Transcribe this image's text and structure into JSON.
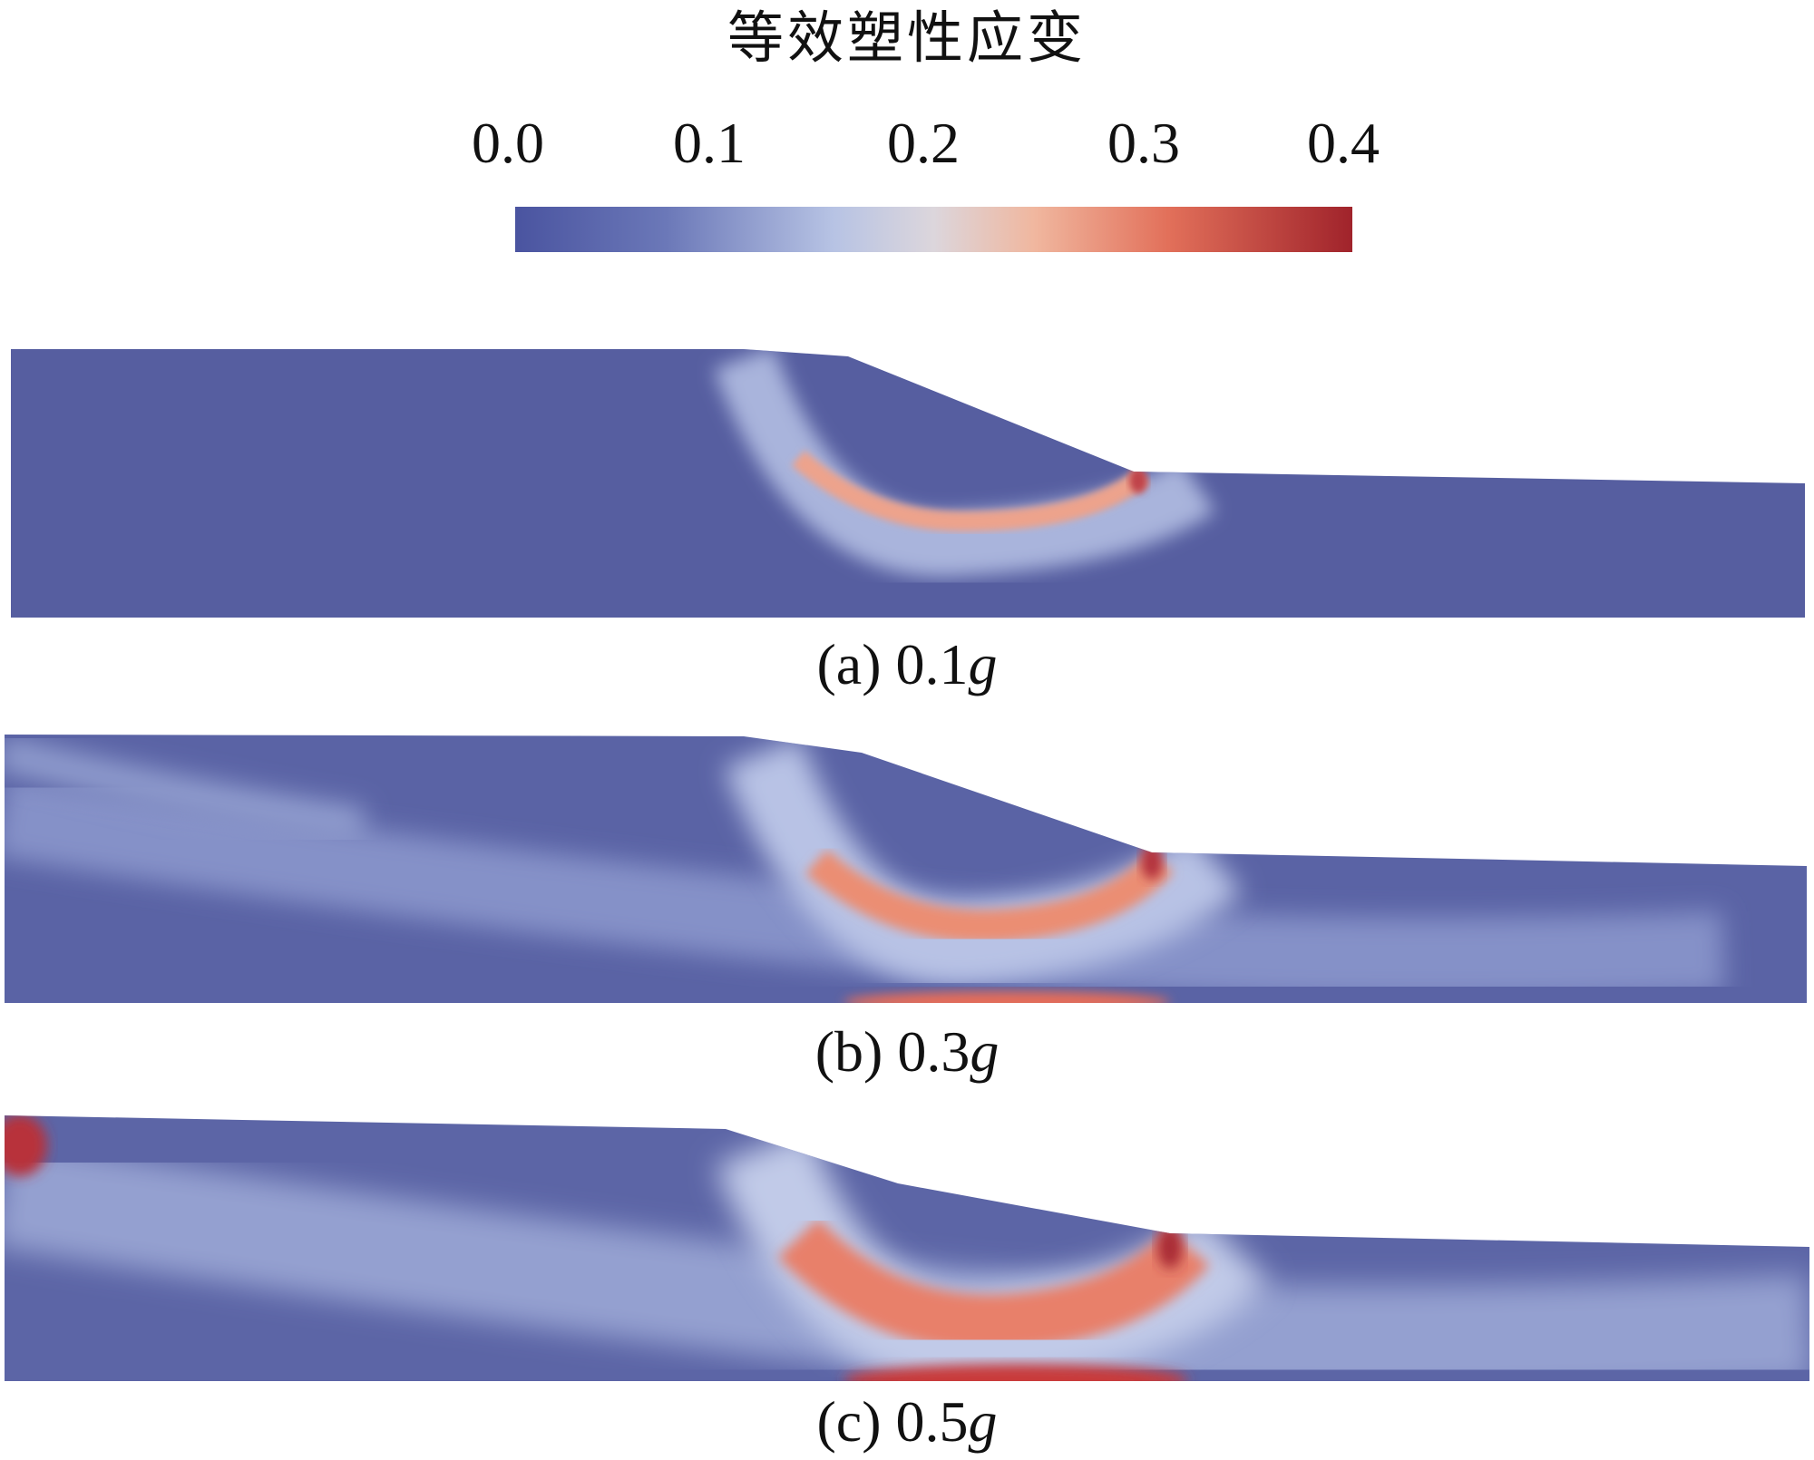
{
  "legend": {
    "title": "等效塑性应变",
    "ticks": [
      "0.0",
      "0.1",
      "0.2",
      "0.3",
      "0.4"
    ],
    "range": [
      0.0,
      0.4
    ],
    "colormap": [
      "#3b4a98",
      "#5b67ae",
      "#9aa8d6",
      "#c9d1ea",
      "#ead5c6",
      "#ef9a7e",
      "#dd6753",
      "#a4202a"
    ]
  },
  "panels": [
    {
      "label": "(a) 0.1",
      "unit": "g"
    },
    {
      "label": "(b) 0.3",
      "unit": "g"
    },
    {
      "label": "(c) 0.5",
      "unit": "g"
    }
  ]
}
